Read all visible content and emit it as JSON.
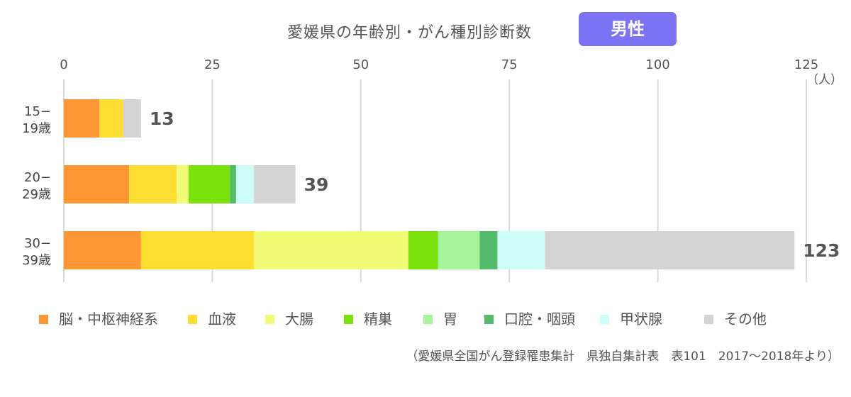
{
  "header": {
    "title": "愛媛県の年齢別・がん種別診断数",
    "badge": "男性"
  },
  "source": "（愛媛県全国がん登録罹患集計　県独自集計表　表101　2017〜2018年より）",
  "chart_data": {
    "type": "bar",
    "orientation": "horizontal",
    "stacked": true,
    "unit": "（人）",
    "xlim": [
      0,
      125
    ],
    "xticks": [
      0,
      25,
      50,
      75,
      100,
      125
    ],
    "grid": true,
    "legend_position": "bottom",
    "categories": [
      {
        "line1": "15−",
        "line2": "19歳"
      },
      {
        "line1": "20−",
        "line2": "29歳"
      },
      {
        "line1": "30−",
        "line2": "39歳"
      }
    ],
    "totals": [
      13,
      39,
      123
    ],
    "series": [
      {
        "name": "脳・中枢神経系",
        "color": "#fd9733",
        "values": [
          6,
          11,
          13
        ]
      },
      {
        "name": "血液",
        "color": "#ffde33",
        "values": [
          4,
          8,
          19
        ]
      },
      {
        "name": "大腸",
        "color": "#f1fb75",
        "values": [
          0,
          2,
          26
        ]
      },
      {
        "name": "精巣",
        "color": "#7ae20a",
        "values": [
          0,
          7,
          5
        ]
      },
      {
        "name": "胃",
        "color": "#a7f59b",
        "values": [
          0,
          0,
          7
        ]
      },
      {
        "name": "口腔・咽頭",
        "color": "#53bc6a",
        "values": [
          0,
          1,
          3
        ]
      },
      {
        "name": "甲状腺",
        "color": "#cefcf6",
        "values": [
          0,
          3,
          8
        ]
      },
      {
        "name": "その他",
        "color": "#d4d4d4",
        "values": [
          3,
          7,
          42
        ]
      }
    ]
  }
}
